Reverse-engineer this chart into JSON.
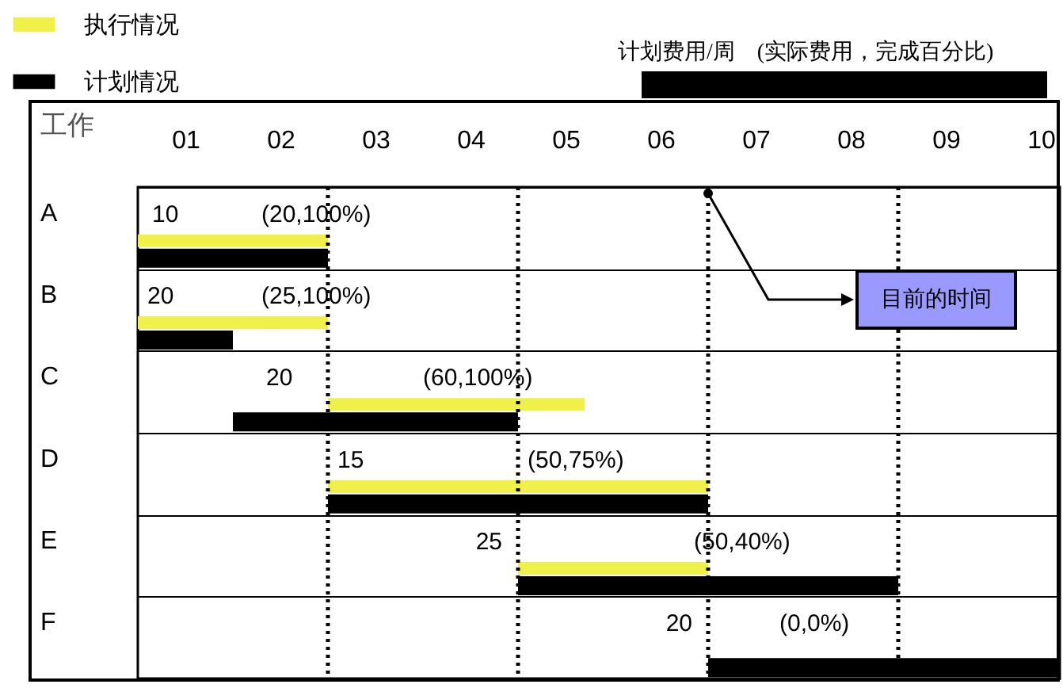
{
  "chart_data": {
    "type": "bar",
    "orientation": "horizontal",
    "subtitle": "计划费用/周    (实际费用，完成百分比)",
    "ylabel": "工作",
    "categories": [
      "A",
      "B",
      "C",
      "D",
      "E",
      "F"
    ],
    "series": [
      {
        "name": "执行情况",
        "color": "#f0f04a",
        "base": [
          0.5,
          0.5,
          2.5,
          2.5,
          4.5,
          null
        ],
        "values": [
          2,
          2,
          2.7,
          4,
          2,
          null
        ]
      },
      {
        "name": "计划情况",
        "color": "#000000",
        "base": [
          0.5,
          0.5,
          1.5,
          2.5,
          4.5,
          6.5
        ],
        "values": [
          2,
          1,
          3,
          4,
          4,
          3.7
        ]
      }
    ],
    "xlim": [
      0.5,
      10.2
    ],
    "xticks": [
      {
        "value": 1,
        "label": "01"
      },
      {
        "value": 2,
        "label": "02"
      },
      {
        "value": 3,
        "label": "03"
      },
      {
        "value": 4,
        "label": "04"
      },
      {
        "value": 5,
        "label": "05"
      },
      {
        "value": 6,
        "label": "06"
      },
      {
        "value": 7,
        "label": "07"
      },
      {
        "value": 8,
        "label": "08"
      },
      {
        "value": 9,
        "label": "09"
      },
      10
    ],
    "grid": "y",
    "legend": "top left",
    "ref_lines": [
      {
        "axis": "x",
        "value": 2.5,
        "line_style": "dotted"
      },
      {
        "axis": "x",
        "value": 4.5,
        "line_style": "dotted"
      },
      {
        "axis": "x",
        "value": 6.5,
        "line_style": "dotted"
      },
      {
        "axis": "x",
        "value": 8.5,
        "line_style": "dotted"
      }
    ],
    "annotations": [
      {
        "text": "10",
        "x": 0.65,
        "y": "A"
      },
      {
        "text": "(20,100%)",
        "x": 1.8,
        "y": "A"
      },
      {
        "text": "20",
        "x": 0.6,
        "y": "B"
      },
      {
        "text": "(25,100%)",
        "x": 1.8,
        "y": "B"
      },
      {
        "text": "20",
        "x": 1.85,
        "y": "C"
      },
      {
        "text": "(60,100%)",
        "x": 3.5,
        "y": "C"
      },
      {
        "text": "15",
        "x": 2.6,
        "y": "D"
      },
      {
        "text": "(50,75%)",
        "x": 4.6,
        "y": "D"
      },
      {
        "text": "25",
        "x": 4.5,
        "y": "E"
      },
      {
        "text": "(50,40%)",
        "x": 6.35,
        "y": "E"
      },
      {
        "text": "20",
        "x": 6.5,
        "y": "F"
      },
      {
        "text": "(0,0%)",
        "x": 7.25,
        "y": "F"
      },
      "目前的时间"
    ]
  }
}
